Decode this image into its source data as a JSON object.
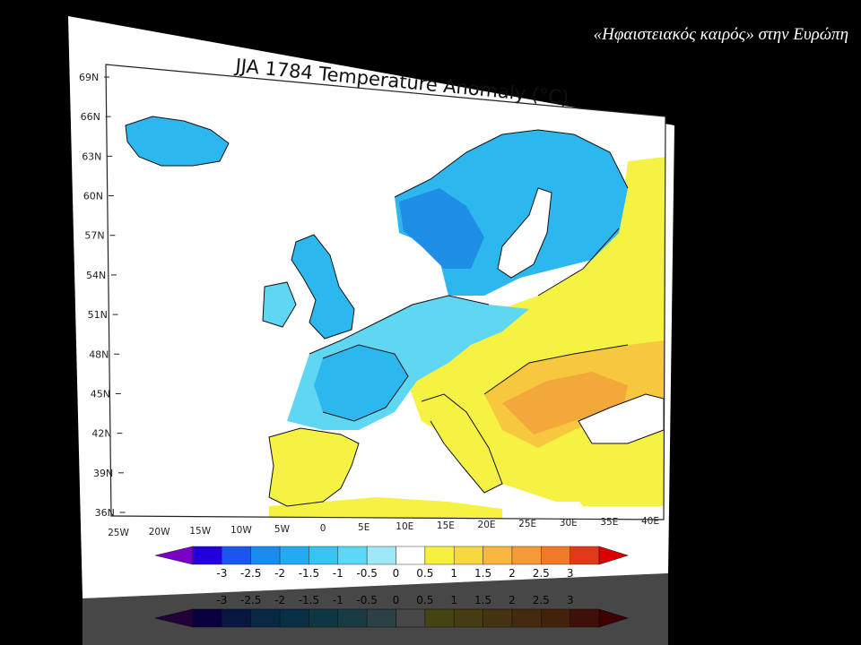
{
  "slide": {
    "title": "«Ηφαιστειακός καιρός» στην Ευρώπη"
  },
  "map": {
    "title": "JJA 1784 Temperature Anomaly (°C)",
    "lat_ticks": [
      "69N",
      "66N",
      "63N",
      "60N",
      "57N",
      "54N",
      "51N",
      "48N",
      "45N",
      "42N",
      "39N",
      "36N"
    ],
    "lon_ticks": [
      "25W",
      "20W",
      "15W",
      "10W",
      "5W",
      "0",
      "5E",
      "10E",
      "15E",
      "20E",
      "25E",
      "30E",
      "35E",
      "40E"
    ],
    "lon_range": [
      -25,
      40
    ],
    "lat_range": [
      35,
      70
    ],
    "colorbar": {
      "labels": [
        "-3",
        "-2.5",
        "-2",
        "-1.5",
        "-1",
        "-0.5",
        "0",
        "0.5",
        "1",
        "1.5",
        "2",
        "2.5",
        "3"
      ],
      "colors": [
        "#2200dd",
        "#1a55ee",
        "#1a8cf0",
        "#22aaf2",
        "#37c4f0",
        "#5cd7f5",
        "#9fe8f8",
        "#ffffff",
        "#f5f040",
        "#f8d840",
        "#f8b840",
        "#f59a38",
        "#f07a28",
        "#e03a1a"
      ],
      "low_arrow_color": "#7a00c8",
      "high_arrow_color": "#dd0000"
    },
    "colors": {
      "ocean": "#ffffff",
      "cold_light": "#5fd6f2",
      "cold": "#2cb8ee",
      "cold_deep": "#1f8ee6",
      "warm_light": "#f5f244",
      "warm": "#f7c83e",
      "warm_deep": "#f2a93a",
      "coast": "#111111"
    }
  }
}
